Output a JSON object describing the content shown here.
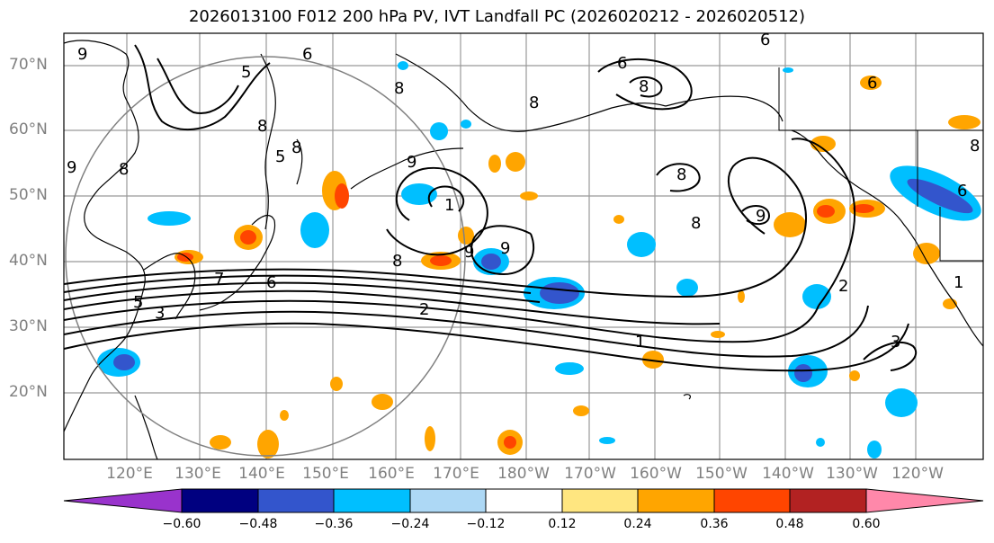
{
  "title": "2026013100 F012 200 hPa PV, IVT Landfall PC (2026020212 - 2026020512)",
  "lat_labels": [
    "70°N",
    "60°N",
    "50°N",
    "40°N",
    "30°N",
    "20°N"
  ],
  "lon_labels": [
    "120°E",
    "130°E",
    "140°E",
    "150°E",
    "160°E",
    "170°E",
    "180°W",
    "170°W",
    "160°W",
    "150°W",
    "140°W",
    "130°W",
    "120°W"
  ],
  "colorbar": {
    "colors": [
      "#9933cc",
      "#000080",
      "#3355cc",
      "#00bfff",
      "#add8f5",
      "#ffffff",
      "#ffe680",
      "#ffa500",
      "#ff4500",
      "#b22222",
      "#ff88aa"
    ],
    "ticks": [
      "−0.60",
      "−0.48",
      "−0.36",
      "−0.24",
      "−0.12",
      "0.12",
      "0.24",
      "0.36",
      "0.48",
      "0.60"
    ]
  },
  "contour_labels": [
    {
      "text": "9",
      "id": "c1"
    },
    {
      "text": "6",
      "id": "c2"
    },
    {
      "text": "5",
      "id": "c3"
    },
    {
      "text": "8",
      "id": "c4"
    },
    {
      "text": "6",
      "id": "c5"
    },
    {
      "text": "6",
      "id": "c6"
    },
    {
      "text": "8",
      "id": "c7"
    },
    {
      "text": "8",
      "id": "c8"
    },
    {
      "text": "9",
      "id": "c9"
    },
    {
      "text": "5",
      "id": "c10"
    },
    {
      "text": "9",
      "id": "c11"
    },
    {
      "text": "8",
      "id": "c12"
    },
    {
      "text": "8",
      "id": "c13"
    },
    {
      "text": "1",
      "id": "c14"
    },
    {
      "text": "8",
      "id": "c15"
    },
    {
      "text": "9",
      "id": "c16"
    },
    {
      "text": "8",
      "id": "c17"
    },
    {
      "text": "9",
      "id": "c18"
    },
    {
      "text": "7",
      "id": "c19"
    },
    {
      "text": "6",
      "id": "c20"
    },
    {
      "text": "5",
      "id": "c21"
    },
    {
      "text": "3",
      "id": "c22"
    },
    {
      "text": "2",
      "id": "c23"
    },
    {
      "text": "1",
      "id": "c24"
    },
    {
      "text": "8",
      "id": "c25"
    },
    {
      "text": "9",
      "id": "c26"
    },
    {
      "text": "2",
      "id": "c27"
    },
    {
      "text": "3",
      "id": "c28"
    },
    {
      "text": "1",
      "id": "c29"
    },
    {
      "text": "8",
      "id": "c30"
    },
    {
      "text": "6",
      "id": "c31"
    },
    {
      "text": "6",
      "id": "c32"
    },
    {
      "text": "8",
      "id": "c33"
    }
  ]
}
